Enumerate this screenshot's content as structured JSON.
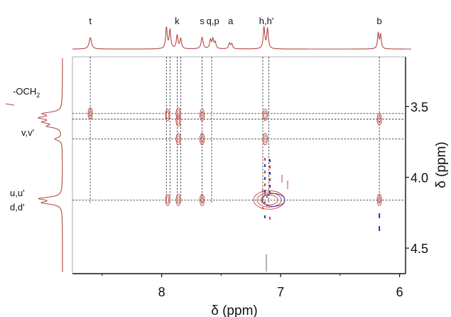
{
  "chart_data": {
    "type": "scatter",
    "subtype": "2D NMR contour spectrum (NOESY) with 1D projections",
    "xlabel": "δ (ppm)",
    "ylabel": "δ (ppm)",
    "xlim": [
      8.75,
      5.95
    ],
    "ylim": [
      3.15,
      4.68
    ],
    "x_ticks": [
      {
        "value": 8,
        "label": "8"
      },
      {
        "value": 7,
        "label": "7"
      },
      {
        "value": 6,
        "label": "6"
      }
    ],
    "y_ticks": [
      {
        "value": 3.5,
        "label": "3.5"
      },
      {
        "value": 4.0,
        "label": "4.0"
      },
      {
        "value": 4.5,
        "label": "4.5"
      }
    ],
    "grid": false,
    "top_peak_labels": [
      {
        "label": "t",
        "x": 8.6
      },
      {
        "label": "k",
        "x": 7.87
      },
      {
        "label": "s",
        "x": 7.66
      },
      {
        "label": "q,p",
        "x": 7.57
      },
      {
        "label": "a",
        "x": 7.42
      },
      {
        "label": "h,h'",
        "x": 7.12
      },
      {
        "label": "b",
        "x": 6.17
      }
    ],
    "side_peak_labels": [
      {
        "label": "-OCH",
        "sub": "2",
        "y": 3.35
      },
      {
        "label": "v,v'",
        "y": 3.74
      },
      {
        "label": "u,u'",
        "y": 4.12
      },
      {
        "label": "d,d'",
        "y": 4.22
      }
    ],
    "vertical_guides_x": [
      8.6,
      7.96,
      7.93,
      7.87,
      7.84,
      7.66,
      7.58,
      7.15,
      7.1,
      6.17
    ],
    "horizontal_guides_y": [
      3.55,
      3.59,
      3.73,
      4.16
    ],
    "cross_peaks": [
      {
        "x": 8.6,
        "y": 3.55
      },
      {
        "x": 7.95,
        "y": 3.56
      },
      {
        "x": 7.95,
        "y": 4.16
      },
      {
        "x": 7.86,
        "y": 3.55
      },
      {
        "x": 7.86,
        "y": 3.6
      },
      {
        "x": 7.86,
        "y": 3.73
      },
      {
        "x": 7.86,
        "y": 4.16
      },
      {
        "x": 7.66,
        "y": 3.56
      },
      {
        "x": 7.66,
        "y": 3.73
      },
      {
        "x": 7.66,
        "y": 4.16
      },
      {
        "x": 7.13,
        "y": 3.56
      },
      {
        "x": 7.13,
        "y": 3.73
      },
      {
        "x": 6.17,
        "y": 3.59
      },
      {
        "x": 6.17,
        "y": 4.16
      }
    ],
    "diagonal_peak": {
      "x": 7.12,
      "y": 4.16
    },
    "colors": {
      "positive": "#c0453c",
      "negative": "#3030b8",
      "projection": "#b04a44",
      "guides": "#222222"
    }
  }
}
